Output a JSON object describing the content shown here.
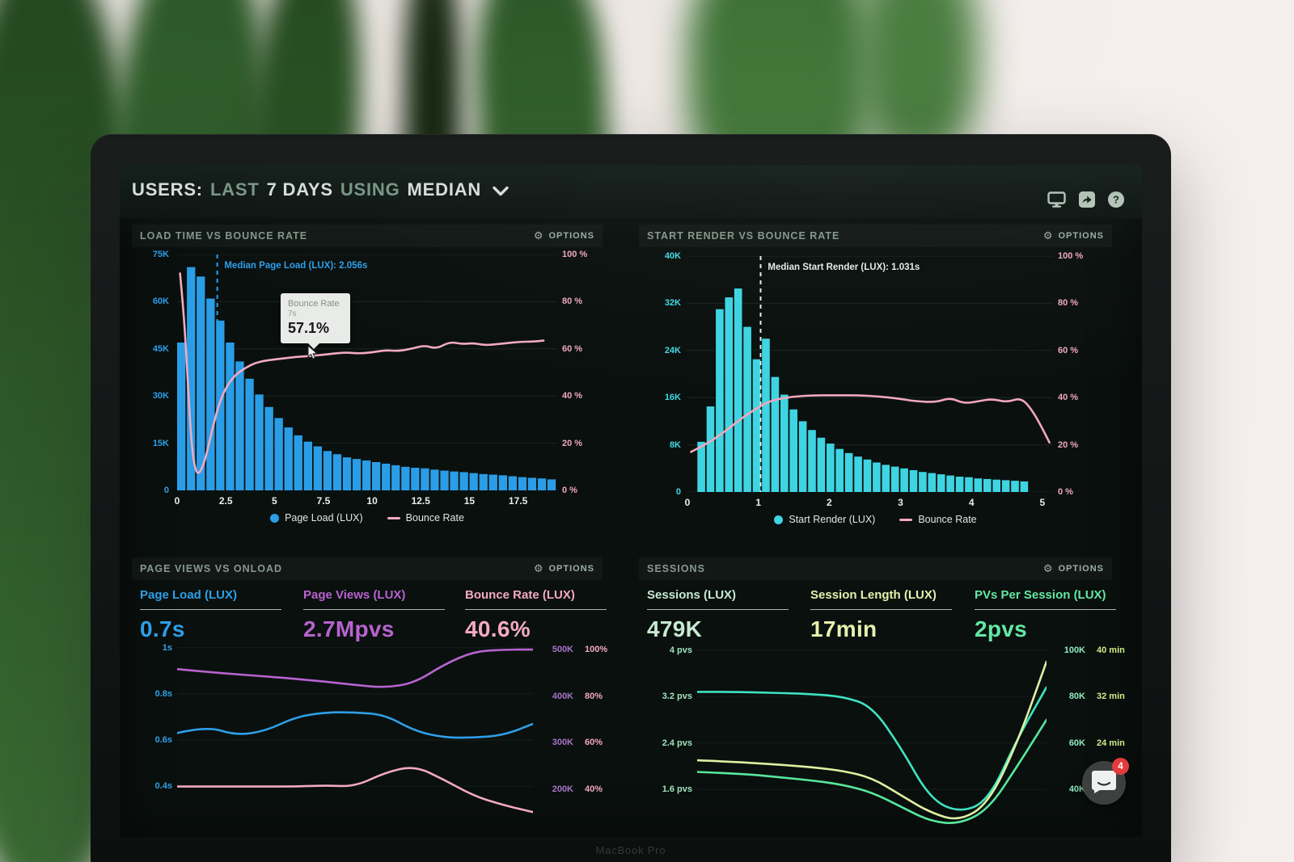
{
  "header": {
    "title_segments": [
      {
        "text": "USERS:"
      },
      {
        "text": "LAST"
      },
      {
        "text": "7 DAYS"
      },
      {
        "text": "USING"
      },
      {
        "text": "MEDIAN"
      }
    ],
    "icons": [
      "display-icon",
      "share-icon",
      "help-icon"
    ]
  },
  "panels": [
    {
      "title": "LOAD TIME VS BOUNCE RATE",
      "options_label": "OPTIONS"
    },
    {
      "title": "START RENDER VS BOUNCE RATE",
      "options_label": "OPTIONS"
    },
    {
      "title": "PAGE VIEWS VS ONLOAD",
      "options_label": "OPTIONS",
      "metrics": [
        {
          "label": "Page Load (LUX)",
          "value": "0.7s",
          "color": "#2e9fe8"
        },
        {
          "label": "Page Views (LUX)",
          "value": "2.7Mpvs",
          "color": "#b763cf"
        },
        {
          "label": "Bounce Rate (LUX)",
          "value": "40.6%",
          "color": "#f2a9c4"
        }
      ]
    },
    {
      "title": "SESSIONS",
      "options_label": "OPTIONS",
      "metrics": [
        {
          "label": "Sessions (LUX)",
          "value": "479K",
          "color": "#c6ead2"
        },
        {
          "label": "Session Length (LUX)",
          "value": "17min",
          "color": "#e7f0ad"
        },
        {
          "label": "PVs Per Session (LUX)",
          "value": "2pvs",
          "color": "#63e8a3"
        }
      ]
    }
  ],
  "chart_data": [
    {
      "type": "bar",
      "title": "LOAD TIME VS BOUNCE RATE",
      "x_range": [
        0,
        19.5
      ],
      "x_ticks": [
        0,
        2.5,
        5,
        7.5,
        10,
        12.5,
        15,
        17.5
      ],
      "left_ticks": [
        "75K",
        "60K",
        "45K",
        "30K",
        "15K",
        "0"
      ],
      "left_max": 75,
      "left_color": "#2e9fe8",
      "right_ticks": [
        "100 %",
        "80 %",
        "60 %",
        "40 %",
        "20 %",
        "0 %"
      ],
      "right_max": 100,
      "right_color": "#f0a8c0",
      "bars": {
        "name": "Page Load (LUX)",
        "color": "#2a9de6",
        "start": 0,
        "bin_width": 0.5,
        "values_k": [
          47,
          71,
          68,
          61,
          54,
          47,
          41,
          35.5,
          30.5,
          26.5,
          23,
          20,
          17.5,
          15.5,
          14,
          12.5,
          11.5,
          10.5,
          10,
          9.5,
          9,
          8.5,
          8,
          7.5,
          7.2,
          7,
          6.6,
          6.3,
          6,
          5.8,
          5.5,
          5.2,
          5,
          4.8,
          4.5,
          4.2,
          4,
          3.8,
          3.5
        ]
      },
      "line": {
        "name": "Bounce Rate",
        "color": "#f2aabf",
        "points_pct": [
          [
            0.15,
            92
          ],
          [
            0.35,
            75
          ],
          [
            0.55,
            45
          ],
          [
            0.75,
            18
          ],
          [
            0.95,
            8
          ],
          [
            1.15,
            7
          ],
          [
            1.45,
            13
          ],
          [
            1.8,
            26
          ],
          [
            2.2,
            38
          ],
          [
            2.6,
            45
          ],
          [
            3.0,
            49
          ],
          [
            3.5,
            52
          ],
          [
            4.0,
            54
          ],
          [
            4.5,
            55
          ],
          [
            5.0,
            55.5
          ],
          [
            5.5,
            56
          ],
          [
            6.0,
            56.5
          ],
          [
            7.0,
            57.1
          ],
          [
            7.5,
            57.5
          ],
          [
            8.0,
            58
          ],
          [
            8.7,
            58.5
          ],
          [
            9.3,
            58
          ],
          [
            10.0,
            58.5
          ],
          [
            10.7,
            59.5
          ],
          [
            11.3,
            59
          ],
          [
            12.0,
            60
          ],
          [
            12.7,
            61.5
          ],
          [
            13.3,
            60
          ],
          [
            14.0,
            63
          ],
          [
            14.6,
            62
          ],
          [
            15.2,
            62.5
          ],
          [
            15.8,
            61.5
          ],
          [
            16.4,
            62
          ],
          [
            17.0,
            62.5
          ],
          [
            17.6,
            63
          ],
          [
            18.2,
            63
          ],
          [
            18.8,
            63.5
          ]
        ]
      },
      "median": {
        "label": "Median Page Load (LUX): 2.056s",
        "x": 2.056,
        "color": "#2e9fe8"
      },
      "tooltip": {
        "title": "Bounce Rate",
        "subtitle": "7s",
        "value": "57.1%"
      },
      "legend": [
        {
          "swatch": "dot",
          "color": "#2a9de6",
          "label": "Page Load (LUX)"
        },
        {
          "swatch": "dash",
          "color": "#f2aabf",
          "label": "Bounce Rate"
        }
      ]
    },
    {
      "type": "bar",
      "title": "START RENDER VS BOUNCE RATE",
      "x_range": [
        0,
        5.15
      ],
      "x_ticks": [
        0,
        1,
        2,
        3,
        4,
        5
      ],
      "left_ticks": [
        "40K",
        "32K",
        "24K",
        "16K",
        "8K",
        "0"
      ],
      "left_max": 40,
      "left_color": "#43d8e2",
      "right_ticks": [
        "100 %",
        "80 %",
        "60 %",
        "40 %",
        "20 %",
        "0 %"
      ],
      "right_max": 100,
      "right_color": "#f0a8c0",
      "bars": {
        "name": "Start Render (LUX)",
        "color": "#3ed4e2",
        "start": 0.14,
        "bin_width": 0.13,
        "values_k": [
          8.5,
          14.5,
          31,
          33,
          34.5,
          28,
          22.5,
          26,
          19.5,
          16.5,
          14,
          12,
          10.5,
          9.2,
          8.2,
          7.3,
          6.6,
          6,
          5.5,
          5,
          4.6,
          4.3,
          4,
          3.7,
          3.4,
          3.2,
          3,
          2.8,
          2.6,
          2.5,
          2.3,
          2.2,
          2.1,
          2,
          1.9,
          1.8
        ]
      },
      "line": {
        "name": "Bounce Rate",
        "color": "#f2a8bc",
        "points_pct": [
          [
            0.05,
            17
          ],
          [
            0.25,
            20
          ],
          [
            0.5,
            25
          ],
          [
            0.75,
            31
          ],
          [
            1.0,
            36
          ],
          [
            1.2,
            39
          ],
          [
            1.5,
            40.5
          ],
          [
            1.8,
            41
          ],
          [
            2.1,
            41
          ],
          [
            2.4,
            41
          ],
          [
            2.7,
            40.5
          ],
          [
            3.0,
            39.5
          ],
          [
            3.2,
            38.5
          ],
          [
            3.5,
            38
          ],
          [
            3.7,
            40
          ],
          [
            3.9,
            37.5
          ],
          [
            4.1,
            38.5
          ],
          [
            4.3,
            39.5
          ],
          [
            4.5,
            38
          ],
          [
            4.7,
            40
          ],
          [
            4.85,
            35
          ],
          [
            5.0,
            27
          ],
          [
            5.1,
            21
          ]
        ]
      },
      "median": {
        "label": "Median Start Render (LUX): 1.031s",
        "x": 1.031,
        "color": "#e3ece7"
      },
      "legend": [
        {
          "swatch": "dot",
          "color": "#3ed4e2",
          "label": "Start Render (LUX)"
        },
        {
          "swatch": "dash",
          "color": "#f2a8bc",
          "label": "Bounce Rate"
        }
      ]
    },
    {
      "type": "line",
      "title": "PAGE VIEWS VS ONLOAD",
      "x_range": [
        0,
        12
      ],
      "scales": {
        "s": {
          "min": 0.18,
          "max": 1.02
        },
        "k": {
          "min": 97,
          "max": 514
        },
        "pct": {
          "min": 19.3,
          "max": 102.8
        }
      },
      "left_scale": "s",
      "right_scale": "k",
      "left_color": "#2e9fe8",
      "right_color_a": "#a873c8",
      "right_color_b": "#f2a8c2",
      "left_ticks": [
        {
          "label": "1s",
          "v": 1
        },
        {
          "label": "0.8s",
          "v": 0.8
        },
        {
          "label": "0.6s",
          "v": 0.6
        },
        {
          "label": "0.4s",
          "v": 0.4
        }
      ],
      "right_ticks": [
        {
          "a": "500K",
          "b": "100%",
          "v": 500
        },
        {
          "a": "400K",
          "b": "80%",
          "v": 400
        },
        {
          "a": "300K",
          "b": "60%",
          "v": 300
        },
        {
          "a": "200K",
          "b": "40%",
          "v": 200
        }
      ],
      "grid_vals": [
        1,
        0.8,
        0.6,
        0.4
      ],
      "series": [
        {
          "name": "Page Load (s)",
          "color": "#2e9fe8",
          "scale": "s",
          "values": [
            0.63,
            0.66,
            0.62,
            0.64,
            0.7,
            0.72,
            0.72,
            0.71,
            0.64,
            0.61,
            0.61,
            0.62,
            0.67
          ]
        },
        {
          "name": "Page Views (K)",
          "color": "#b763cf",
          "scale": "k",
          "values": [
            458,
            452,
            447,
            442,
            437,
            431,
            424,
            418,
            428,
            468,
            496,
            500,
            500
          ]
        },
        {
          "name": "Bounce Rate (%)",
          "color": "#f2a9c4",
          "scale": "pct",
          "values": [
            41,
            41,
            41,
            41,
            41,
            41.5,
            41,
            47,
            50,
            44,
            37,
            33,
            30
          ]
        }
      ]
    },
    {
      "type": "line",
      "title": "SESSIONS",
      "x_range": [
        0,
        12
      ],
      "scales": {
        "pvs": {
          "min": 0.78,
          "max": 4.12
        },
        "k": {
          "min": 19.6,
          "max": 103
        },
        "min": {
          "min": 7.8,
          "max": 41.2
        }
      },
      "left_scale": "pvs",
      "right_scale": "k",
      "left_color": "#9fe3bd",
      "right_color_a": "#8fe8c0",
      "right_color_b": "#cdeb8a",
      "left_ticks": [
        {
          "label": "4 pvs",
          "v": 4
        },
        {
          "label": "3.2 pvs",
          "v": 3.2
        },
        {
          "label": "2.4 pvs",
          "v": 2.4
        },
        {
          "label": "1.6 pvs",
          "v": 1.6
        }
      ],
      "right_ticks": [
        {
          "a": "100K",
          "b": "40 min",
          "v": 100
        },
        {
          "a": "80K",
          "b": "32 min",
          "v": 80
        },
        {
          "a": "60K",
          "b": "24 min",
          "v": 60
        },
        {
          "a": "40K",
          "b": "",
          "v": 40
        }
      ],
      "grid_vals": [
        4,
        3.2,
        2.4,
        1.6
      ],
      "series": [
        {
          "name": "Sessions (K)",
          "color": "#3fe3c1",
          "scale": "k",
          "values": [
            82,
            82,
            81.8,
            81.5,
            81,
            80,
            76,
            58,
            36,
            30,
            35,
            62,
            84
          ]
        },
        {
          "name": "PVs Per Session",
          "color": "#58e79d",
          "scale": "pvs",
          "values": [
            1.9,
            1.88,
            1.85,
            1.8,
            1.75,
            1.68,
            1.55,
            1.3,
            1.05,
            1.0,
            1.25,
            2.0,
            2.8
          ]
        },
        {
          "name": "Session Length (min)",
          "color": "#dff0a0",
          "scale": "min",
          "values": [
            21,
            20.8,
            20.5,
            20.2,
            19.8,
            19.2,
            18,
            15,
            12,
            10.5,
            13.5,
            24,
            38
          ]
        }
      ]
    }
  ],
  "chat_launcher": {
    "badge": "4"
  },
  "laptop_label": "MacBook Pro"
}
